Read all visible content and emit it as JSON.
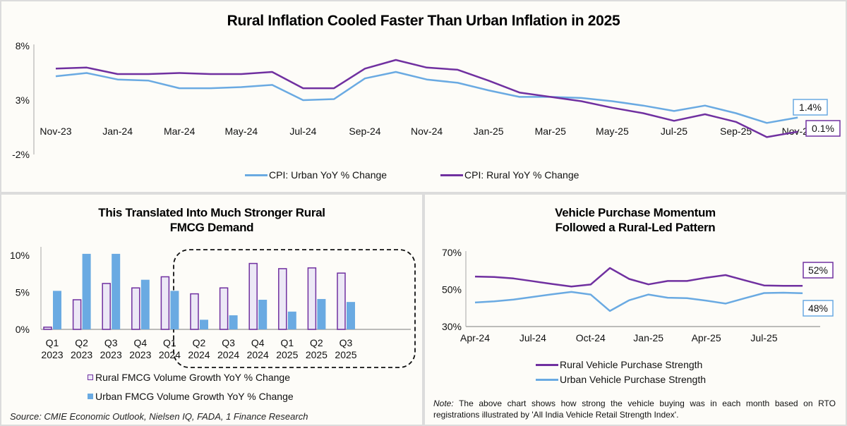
{
  "colors": {
    "urban": "#6aaae2",
    "rural": "#7030a0",
    "rural_bar_fill": "#ece8f6",
    "axis": "#a6a6a6"
  },
  "chart_data": [
    {
      "id": "cpi",
      "type": "line",
      "title": "Rural Inflation Cooled Faster Than Urban Inflation in 2025",
      "xlabel": "",
      "ylabel": "",
      "ylim": [
        -2,
        8
      ],
      "yticks": [
        "8%",
        "3%",
        "-2%"
      ],
      "ytick_values": [
        8,
        3,
        -2
      ],
      "x": [
        "Nov-23",
        "Dec-23",
        "Jan-24",
        "Feb-24",
        "Mar-24",
        "Apr-24",
        "May-24",
        "Jun-24",
        "Jul-24",
        "Aug-24",
        "Sep-24",
        "Oct-24",
        "Nov-24",
        "Dec-24",
        "Jan-25",
        "Feb-25",
        "Mar-25",
        "Apr-25",
        "May-25",
        "Jun-25",
        "Jul-25",
        "Aug-25",
        "Sep-25",
        "Oct-25",
        "Nov-25"
      ],
      "xtick_labels": [
        "Nov-23",
        "Jan-24",
        "Mar-24",
        "May-24",
        "Jul-24",
        "Sep-24",
        "Nov-24",
        "Jan-25",
        "Mar-25",
        "May-25",
        "Jul-25",
        "Sep-25",
        "Nov-25"
      ],
      "series": [
        {
          "name": "CPI: Urban YoY % Change",
          "color_key": "urban",
          "values": [
            5.2,
            5.5,
            4.9,
            4.8,
            4.1,
            4.1,
            4.2,
            4.4,
            3.0,
            3.1,
            5.0,
            5.6,
            4.9,
            4.6,
            3.9,
            3.3,
            3.3,
            3.2,
            2.9,
            2.5,
            2.0,
            2.5,
            1.8,
            0.9,
            1.4
          ],
          "end_label": "1.4%"
        },
        {
          "name": "CPI: Rural YoY % Change",
          "color_key": "rural",
          "values": [
            5.9,
            6.0,
            5.4,
            5.4,
            5.5,
            5.4,
            5.4,
            5.6,
            4.1,
            4.1,
            5.9,
            6.7,
            6.0,
            5.8,
            4.8,
            3.7,
            3.3,
            2.9,
            2.3,
            1.8,
            1.1,
            1.7,
            1.0,
            -0.4,
            0.1
          ],
          "end_label": "0.1%"
        }
      ],
      "grid": false,
      "legend": "bottom"
    },
    {
      "id": "fmcg",
      "type": "bar",
      "title": "This Translated Into Much Stronger Rural FMCG Demand",
      "xlabel": "",
      "ylabel": "",
      "ylim": [
        0,
        10
      ],
      "yticks": [
        "10%",
        "5%",
        "0%"
      ],
      "ytick_values": [
        10,
        5,
        0
      ],
      "categories": [
        [
          "Q1",
          "2023"
        ],
        [
          "Q2",
          "2023"
        ],
        [
          "Q3",
          "2023"
        ],
        [
          "Q4",
          "2023"
        ],
        [
          "Q1",
          "2024"
        ],
        [
          "Q2",
          "2024"
        ],
        [
          "Q3",
          "2024"
        ],
        [
          "Q4",
          "2024"
        ],
        [
          "Q1",
          "2025"
        ],
        [
          "Q2",
          "2025"
        ],
        [
          "Q3",
          "2025"
        ]
      ],
      "series": [
        {
          "name": "Rural FMCG Volume Growth YoY % Change",
          "color_key": "rural",
          "values": [
            0.3,
            4.0,
            6.2,
            5.6,
            7.1,
            4.8,
            5.6,
            8.9,
            8.2,
            8.3,
            7.6
          ]
        },
        {
          "name": "Urban FMCG Volume Growth YoY % Change",
          "color_key": "urban",
          "values": [
            5.2,
            10.2,
            10.2,
            6.7,
            5.2,
            1.3,
            1.9,
            4.0,
            2.4,
            4.1,
            3.7
          ]
        }
      ],
      "highlight": "Q1 2024 – Q3 2025 (dashed box)",
      "grid": false,
      "legend": "bottom"
    },
    {
      "id": "vehicle",
      "type": "line",
      "title": "Vehicle Purchase Momentum Followed a Rural-Led Pattern",
      "xlabel": "",
      "ylabel": "",
      "ylim": [
        30,
        70
      ],
      "yticks": [
        "70%",
        "50%",
        "30%"
      ],
      "ytick_values": [
        70,
        50,
        30
      ],
      "x": [
        "Apr-24",
        "May-24",
        "Jun-24",
        "Jul-24",
        "Aug-24",
        "Sep-24",
        "Oct-24",
        "Nov-24",
        "Dec-24",
        "Jan-25",
        "Feb-25",
        "Mar-25",
        "Apr-25",
        "May-25",
        "Jun-25",
        "Jul-25",
        "Aug-25",
        "Sep-25"
      ],
      "xtick_labels": [
        "Apr-24",
        "Jul-24",
        "Oct-24",
        "Jan-25",
        "Apr-25",
        "Jul-25"
      ],
      "series": [
        {
          "name": "Rural Vehicle Purchase Strength",
          "color_key": "rural",
          "values": [
            57,
            56.8,
            56,
            54.5,
            53,
            51.6,
            52.7,
            61.6,
            55.7,
            52.8,
            54.6,
            54.6,
            56.4,
            57.8,
            55,
            52.2,
            52,
            52
          ],
          "end_label": "52%"
        },
        {
          "name": "Urban Vehicle Purchase Strength",
          "color_key": "urban",
          "values": [
            43,
            43.6,
            44.6,
            46,
            47.4,
            48.7,
            47.3,
            38.4,
            44.2,
            47.3,
            45.6,
            45.3,
            44,
            42.4,
            45.3,
            48.1,
            48.3,
            48
          ],
          "end_label": "48%"
        }
      ],
      "grid": false,
      "legend": "bottom"
    }
  ],
  "source": "Source: CMIE Economic Outlook, Nielsen IQ, FADA, 1 Finance Research",
  "note": {
    "label": "Note:",
    "text": " The above chart shows how strong the vehicle buying was in each month based on RTO registrations illustrated by 'All India Vehicle Retail Strength Index'."
  }
}
